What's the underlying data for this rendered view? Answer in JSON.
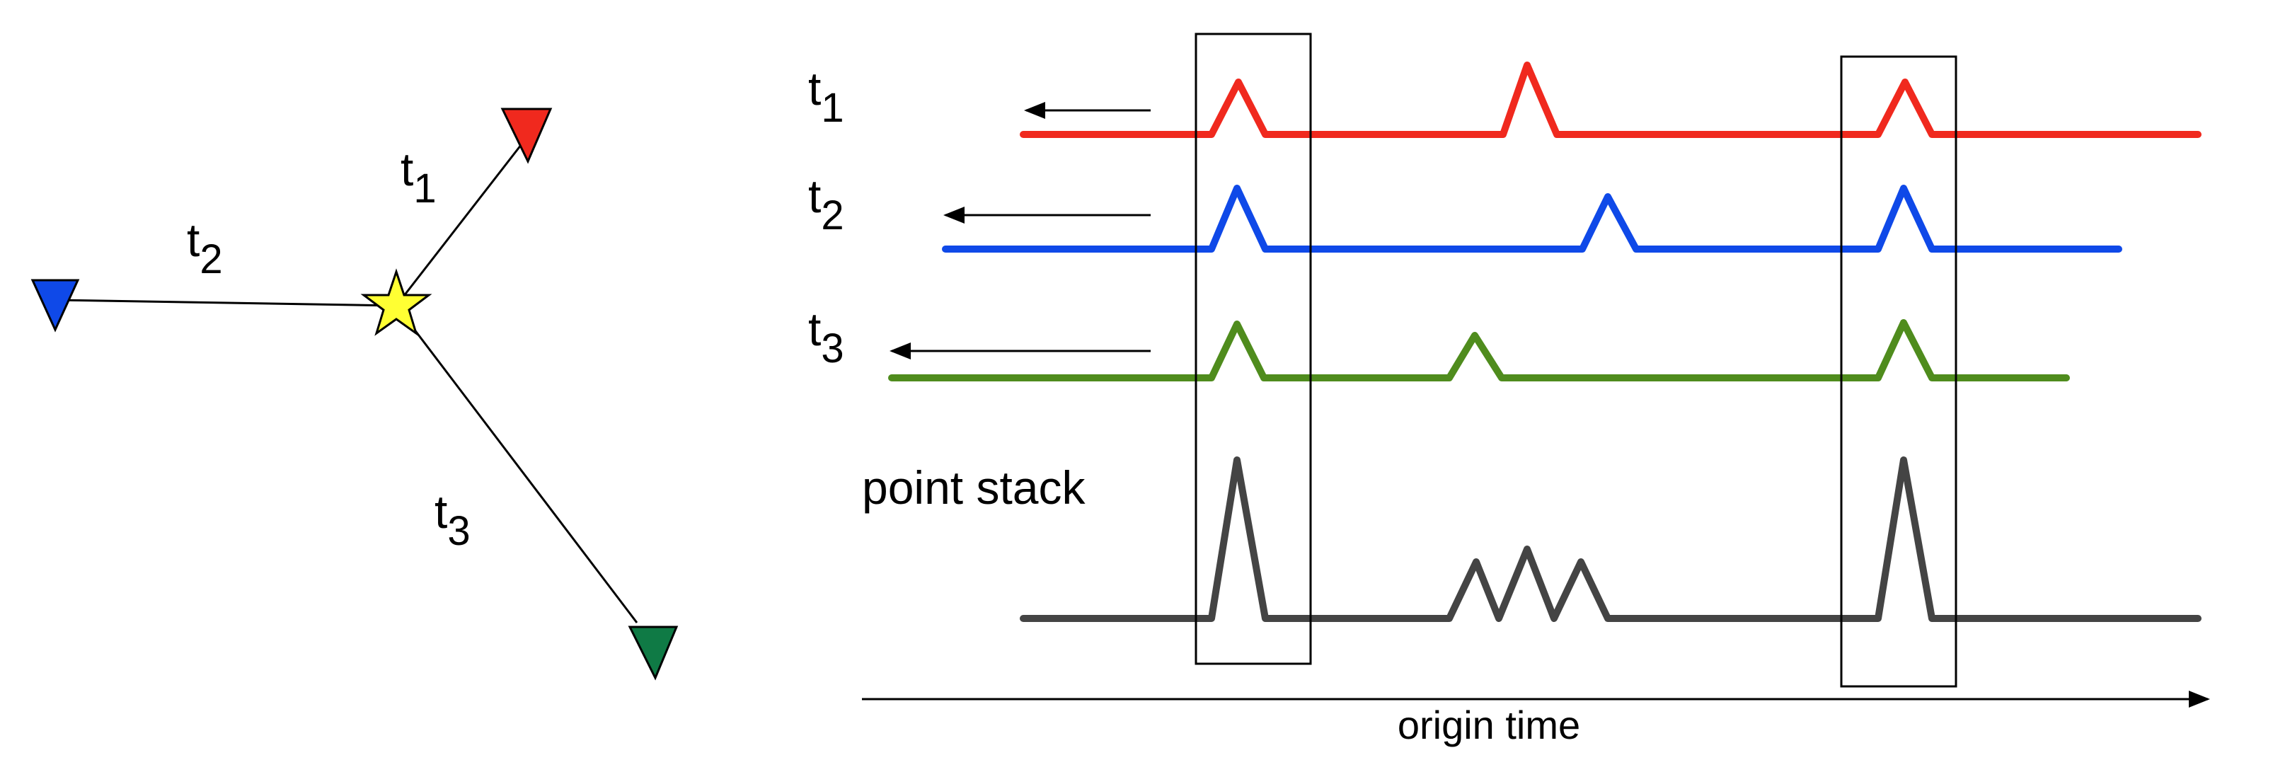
{
  "station_map": {
    "legs": [
      {
        "id": "t1",
        "label_main": "t",
        "label_sub": "1",
        "color": "#f0291e"
      },
      {
        "id": "t2",
        "label_main": "t",
        "label_sub": "2",
        "color": "#0f49e8"
      },
      {
        "id": "t3",
        "label_main": "t",
        "label_sub": "3",
        "color": "#0f7a45"
      }
    ],
    "source_color": "#ffff33"
  },
  "traces": [
    {
      "id": "t1",
      "label_main": "t",
      "label_sub": "1",
      "color": "#f0291e"
    },
    {
      "id": "t2",
      "label_main": "t",
      "label_sub": "2",
      "color": "#0f49e8"
    },
    {
      "id": "t3",
      "label_main": "t",
      "label_sub": "3",
      "color": "#4f8c1d"
    }
  ],
  "stack": {
    "label": "point stack",
    "color": "#444444"
  },
  "axis": {
    "label": "origin time"
  }
}
